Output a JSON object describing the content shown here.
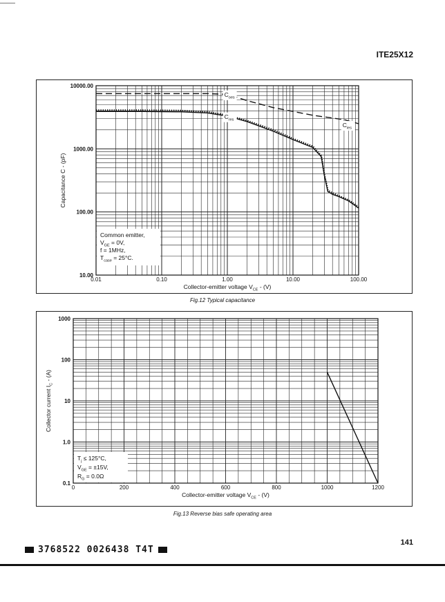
{
  "header": {
    "part_number": "ITE25X12"
  },
  "page_number": "141",
  "footer_code": "3768522 0026438 T4T",
  "chart_data": [
    {
      "type": "line",
      "caption": "Fig.12 Typical capacitance",
      "xlabel": "Collector-emitter voltage V",
      "xlabel_sub": "CE",
      "xlabel_tail": " - (V)",
      "ylabel": "Capacitance C - (pF)",
      "x_scale": "log",
      "y_scale": "log",
      "xlim": [
        0.01,
        100
      ],
      "ylim": [
        10,
        10000
      ],
      "x_ticks": [
        0.01,
        0.1,
        1,
        10,
        100
      ],
      "x_tick_labels": [
        "0.01",
        "0.10",
        "1.00",
        "10.00",
        "100.00"
      ],
      "y_ticks": [
        10,
        100,
        1000,
        10000
      ],
      "y_tick_labels": [
        "10.00",
        "100.00",
        "1000.00",
        "10000.00"
      ],
      "grid": true,
      "series": [
        {
          "name": "C",
          "name_sub": "oes",
          "style": "dashed",
          "x": [
            0.01,
            0.1,
            0.5,
            1.0,
            2.0,
            5.0,
            20,
            60,
            100
          ],
          "y": [
            7500,
            7500,
            7500,
            7300,
            5800,
            4500,
            3400,
            2900,
            2500
          ]
        },
        {
          "name": "C",
          "name_sub": "ies",
          "style": "solid",
          "x": [
            0.01,
            0.05,
            0.2,
            0.5,
            1.0,
            2.0,
            5.0,
            10,
            20,
            27,
            30,
            34,
            40,
            50,
            70,
            100
          ],
          "y": [
            3900,
            3900,
            3850,
            3700,
            3300,
            2700,
            1900,
            1400,
            1050,
            750,
            380,
            210,
            190,
            175,
            150,
            115
          ]
        },
        {
          "name": "C",
          "name_sub": "res",
          "style": "dotted",
          "x": [
            0.01,
            0.05,
            0.2,
            0.5,
            1.0,
            2.0,
            5.0,
            10,
            20,
            27,
            30,
            34,
            40,
            50,
            70,
            100
          ],
          "y": [
            4100,
            4100,
            4050,
            3850,
            3400,
            2800,
            2000,
            1450,
            1100,
            780,
            400,
            220,
            200,
            180,
            155,
            120
          ]
        }
      ],
      "annotation": {
        "lines": [
          {
            "text": "Common emitter,"
          },
          {
            "pre": "V",
            "sub": "GE",
            "post": " = 0V,"
          },
          {
            "text": "f = 1MHz,"
          },
          {
            "pre": "T",
            "sub": "case",
            "post": " = 25°C."
          }
        ]
      }
    },
    {
      "type": "line",
      "caption": "Fig.13 Reverse bias safe operating area",
      "xlabel": "Collector-emitter voltage V",
      "xlabel_sub": "CE",
      "xlabel_tail": " - (V)",
      "ylabel": "Collector current I",
      "ylabel_sub": "C",
      "ylabel_tail": " - (A)",
      "x_scale": "linear",
      "y_scale": "log",
      "xlim": [
        0,
        1200
      ],
      "ylim": [
        0.1,
        1000
      ],
      "x_ticks": [
        0,
        200,
        400,
        600,
        800,
        1000,
        1200
      ],
      "x_tick_labels": [
        "0",
        "200",
        "400",
        "600",
        "800",
        "1000",
        "1200"
      ],
      "y_ticks": [
        0.1,
        1,
        10,
        100,
        1000
      ],
      "y_tick_labels": [
        "0.1",
        "1.0",
        "10",
        "100",
        "1000"
      ],
      "grid": true,
      "series": [
        {
          "style": "solid",
          "x": [
            1000,
            1200
          ],
          "y": [
            50,
            0.1
          ]
        }
      ],
      "annotation": {
        "lines": [
          {
            "pre": "T",
            "sub": "j",
            "post": " ≤ 125°C,"
          },
          {
            "pre": "V",
            "sub": "GE",
            "post": " = ±15V,"
          },
          {
            "pre": "R",
            "sub": "G",
            "post": " = 0.0Ω"
          }
        ]
      }
    }
  ],
  "colors": {
    "ink": "#111111",
    "grid": "#222222",
    "paper": "#ffffff"
  }
}
